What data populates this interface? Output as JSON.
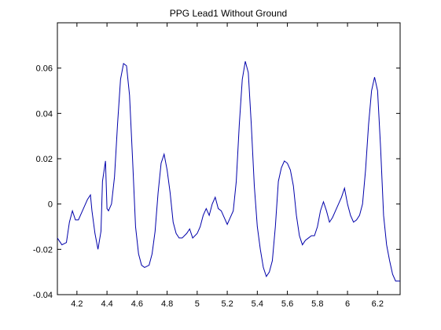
{
  "chart_data": {
    "type": "line",
    "title": "PPG Lead1 Without Ground",
    "xlabel": "",
    "ylabel": "",
    "xlim": [
      4.07,
      6.35
    ],
    "ylim": [
      -0.04,
      0.08
    ],
    "xticks": [
      4.2,
      4.4,
      4.6,
      4.8,
      5.0,
      5.2,
      5.4,
      5.6,
      5.8,
      6.0,
      6.2
    ],
    "xtick_labels": [
      "4.2",
      "4.4",
      "4.6",
      "4.8",
      "5",
      "5.2",
      "5.4",
      "5.6",
      "5.8",
      "6",
      "6.2"
    ],
    "yticks": [
      -0.04,
      -0.02,
      0,
      0.02,
      0.04,
      0.06
    ],
    "ytick_labels": [
      "-0.04",
      "-0.02",
      "0",
      "0.02",
      "0.04",
      "0.06"
    ],
    "grid": false,
    "line_color": "#0000aa",
    "series": [
      {
        "x": [
          4.07,
          4.1,
          4.13,
          4.15,
          4.17,
          4.19,
          4.21,
          4.23,
          4.25,
          4.27,
          4.29,
          4.3,
          4.32,
          4.34,
          4.36,
          4.37,
          4.39,
          4.4,
          4.41,
          4.43,
          4.45,
          4.47,
          4.49,
          4.51,
          4.53,
          4.55,
          4.57,
          4.59,
          4.61,
          4.63,
          4.65,
          4.68,
          4.7,
          4.72,
          4.74,
          4.76,
          4.78,
          4.8,
          4.82,
          4.84,
          4.86,
          4.88,
          4.9,
          4.93,
          4.95,
          4.97,
          5.0,
          5.02,
          5.04,
          5.06,
          5.08,
          5.1,
          5.12,
          5.14,
          5.16,
          5.18,
          5.2,
          5.22,
          5.24,
          5.26,
          5.28,
          5.3,
          5.32,
          5.34,
          5.36,
          5.38,
          5.4,
          5.42,
          5.44,
          5.46,
          5.48,
          5.5,
          5.52,
          5.54,
          5.56,
          5.58,
          5.6,
          5.62,
          5.64,
          5.66,
          5.68,
          5.7,
          5.72,
          5.74,
          5.76,
          5.78,
          5.8,
          5.82,
          5.84,
          5.86,
          5.88,
          5.9,
          5.92,
          5.94,
          5.96,
          5.98,
          6.0,
          6.02,
          6.04,
          6.06,
          6.08,
          6.1,
          6.12,
          6.14,
          6.16,
          6.18,
          6.2,
          6.22,
          6.24,
          6.26,
          6.28,
          6.3,
          6.32,
          6.35
        ],
        "y": [
          -0.015,
          -0.018,
          -0.017,
          -0.008,
          -0.003,
          -0.007,
          -0.007,
          -0.004,
          -0.001,
          0.002,
          0.004,
          -0.003,
          -0.013,
          -0.02,
          -0.012,
          0.01,
          0.019,
          -0.002,
          -0.003,
          0.0,
          0.012,
          0.035,
          0.055,
          0.062,
          0.061,
          0.048,
          0.02,
          -0.01,
          -0.022,
          -0.027,
          -0.028,
          -0.027,
          -0.022,
          -0.012,
          0.005,
          0.018,
          0.022,
          0.015,
          0.005,
          -0.008,
          -0.013,
          -0.015,
          -0.015,
          -0.013,
          -0.011,
          -0.015,
          -0.013,
          -0.01,
          -0.005,
          -0.002,
          -0.005,
          0.0,
          0.003,
          -0.002,
          -0.003,
          -0.006,
          -0.009,
          -0.006,
          -0.003,
          0.01,
          0.035,
          0.055,
          0.063,
          0.058,
          0.035,
          0.008,
          -0.01,
          -0.02,
          -0.028,
          -0.032,
          -0.03,
          -0.025,
          -0.01,
          0.01,
          0.016,
          0.019,
          0.018,
          0.015,
          0.008,
          -0.005,
          -0.014,
          -0.018,
          -0.016,
          -0.015,
          -0.014,
          -0.014,
          -0.01,
          -0.003,
          0.001,
          -0.003,
          -0.008,
          -0.006,
          -0.003,
          0.0,
          0.003,
          0.007,
          0.0,
          -0.005,
          -0.008,
          -0.007,
          -0.005,
          0.0,
          0.015,
          0.035,
          0.05,
          0.056,
          0.05,
          0.025,
          -0.005,
          -0.018,
          -0.025,
          -0.031,
          -0.034,
          -0.034
        ]
      }
    ]
  }
}
